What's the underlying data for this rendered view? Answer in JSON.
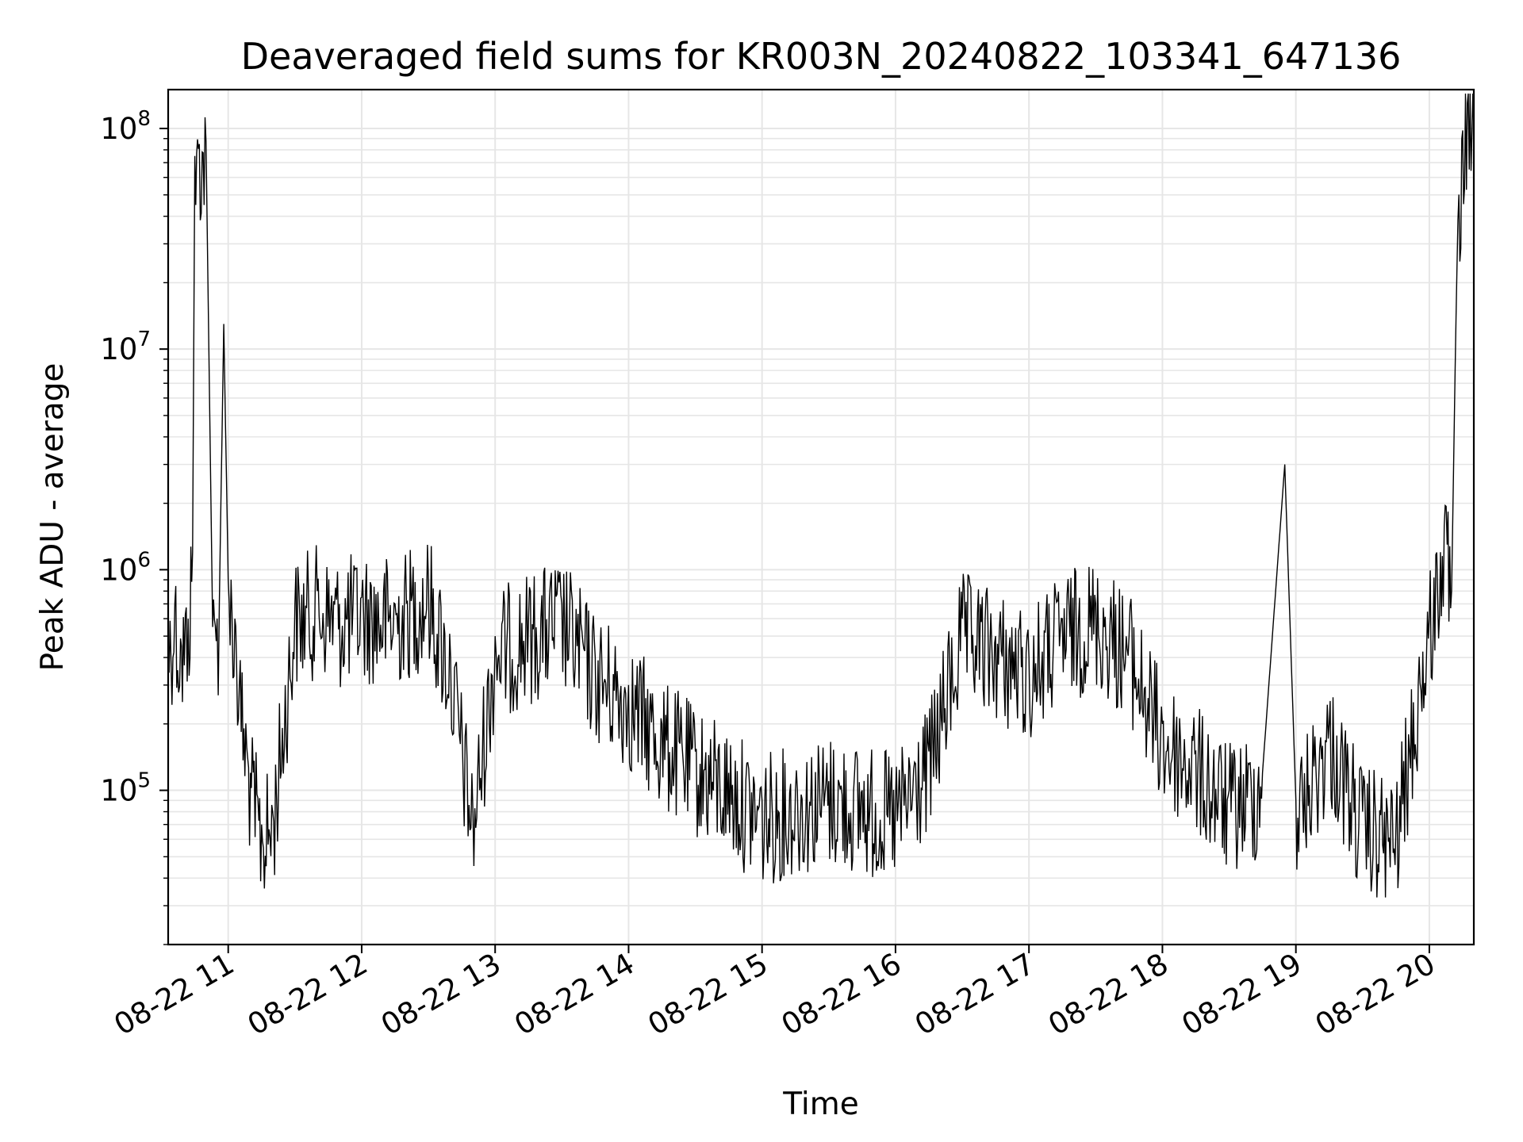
{
  "chart_data": {
    "type": "line",
    "title": "Deaveraged field sums for KR003N_20240822_103341_647136",
    "xlabel": "Time",
    "ylabel": "Peak ADU - average",
    "yscale": "log",
    "ylim": [
      20000,
      150000000
    ],
    "xlim": [
      "2024-08-22 10:33",
      "2024-08-22 20:20"
    ],
    "grid": true,
    "line_color": "#000000",
    "grid_color": "#e6e6e6",
    "x_ticks": [
      {
        "value": "2024-08-22 11:00",
        "label": "08-22 11"
      },
      {
        "value": "2024-08-22 12:00",
        "label": "08-22 12"
      },
      {
        "value": "2024-08-22 13:00",
        "label": "08-22 13"
      },
      {
        "value": "2024-08-22 14:00",
        "label": "08-22 14"
      },
      {
        "value": "2024-08-22 15:00",
        "label": "08-22 15"
      },
      {
        "value": "2024-08-22 16:00",
        "label": "08-22 16"
      },
      {
        "value": "2024-08-22 17:00",
        "label": "08-22 17"
      },
      {
        "value": "2024-08-22 18:00",
        "label": "08-22 18"
      },
      {
        "value": "2024-08-22 19:00",
        "label": "08-22 19"
      },
      {
        "value": "2024-08-22 20:00",
        "label": "08-22 20"
      }
    ],
    "y_ticks": [
      {
        "value": 100000,
        "base": "10",
        "exp": "5"
      },
      {
        "value": 1000000,
        "base": "10",
        "exp": "6"
      },
      {
        "value": 10000000,
        "base": "10",
        "exp": "7"
      },
      {
        "value": 100000000,
        "base": "10",
        "exp": "8"
      }
    ],
    "series": [
      {
        "x": [
          "2024-08-22 10:33",
          "2024-08-22 10:36",
          "2024-08-22 10:39",
          "2024-08-22 10:42",
          "2024-08-22 10:44",
          "2024-08-22 10:45",
          "2024-08-22 10:47",
          "2024-08-22 10:50",
          "2024-08-22 10:53",
          "2024-08-22 10:55",
          "2024-08-22 10:56",
          "2024-08-22 10:58",
          "2024-08-22 11:00",
          "2024-08-22 11:03",
          "2024-08-22 11:05",
          "2024-08-22 11:10",
          "2024-08-22 11:15",
          "2024-08-22 11:20",
          "2024-08-22 11:30",
          "2024-08-22 11:40",
          "2024-08-22 11:50",
          "2024-08-22 12:00",
          "2024-08-22 12:15",
          "2024-08-22 12:30",
          "2024-08-22 12:40",
          "2024-08-22 12:50",
          "2024-08-22 13:00",
          "2024-08-22 13:15",
          "2024-08-22 13:30",
          "2024-08-22 13:45",
          "2024-08-22 14:00",
          "2024-08-22 14:15",
          "2024-08-22 14:30",
          "2024-08-22 14:45",
          "2024-08-22 15:00",
          "2024-08-22 15:15",
          "2024-08-22 15:30",
          "2024-08-22 15:45",
          "2024-08-22 16:00",
          "2024-08-22 16:15",
          "2024-08-22 16:30",
          "2024-08-22 16:45",
          "2024-08-22 17:00",
          "2024-08-22 17:15",
          "2024-08-22 17:30",
          "2024-08-22 17:45",
          "2024-08-22 18:00",
          "2024-08-22 18:15",
          "2024-08-22 18:30",
          "2024-08-22 18:45",
          "2024-08-22 18:55",
          "2024-08-22 19:00",
          "2024-08-22 19:15",
          "2024-08-22 19:30",
          "2024-08-22 19:45",
          "2024-08-22 19:55",
          "2024-08-22 20:00",
          "2024-08-22 20:05",
          "2024-08-22 20:08",
          "2024-08-22 20:10",
          "2024-08-22 20:12",
          "2024-08-22 20:15",
          "2024-08-22 20:20"
        ],
        "y": [
          500000,
          700000,
          450000,
          600000,
          1200000,
          75000000,
          85000000,
          88000000,
          550000,
          600000,
          700000,
          13000000,
          900000,
          600000,
          300000,
          120000,
          70000,
          80000,
          700000,
          800000,
          700000,
          750000,
          700000,
          900000,
          400000,
          80000,
          500000,
          600000,
          700000,
          400000,
          300000,
          200000,
          150000,
          120000,
          90000,
          100000,
          110000,
          100000,
          90000,
          150000,
          600000,
          500000,
          400000,
          600000,
          700000,
          500000,
          200000,
          150000,
          100000,
          120000,
          3000000,
          90000,
          200000,
          80000,
          70000,
          300000,
          600000,
          1200000,
          1300000,
          800000,
          14000000,
          98000000,
          98000000
        ]
      }
    ]
  }
}
